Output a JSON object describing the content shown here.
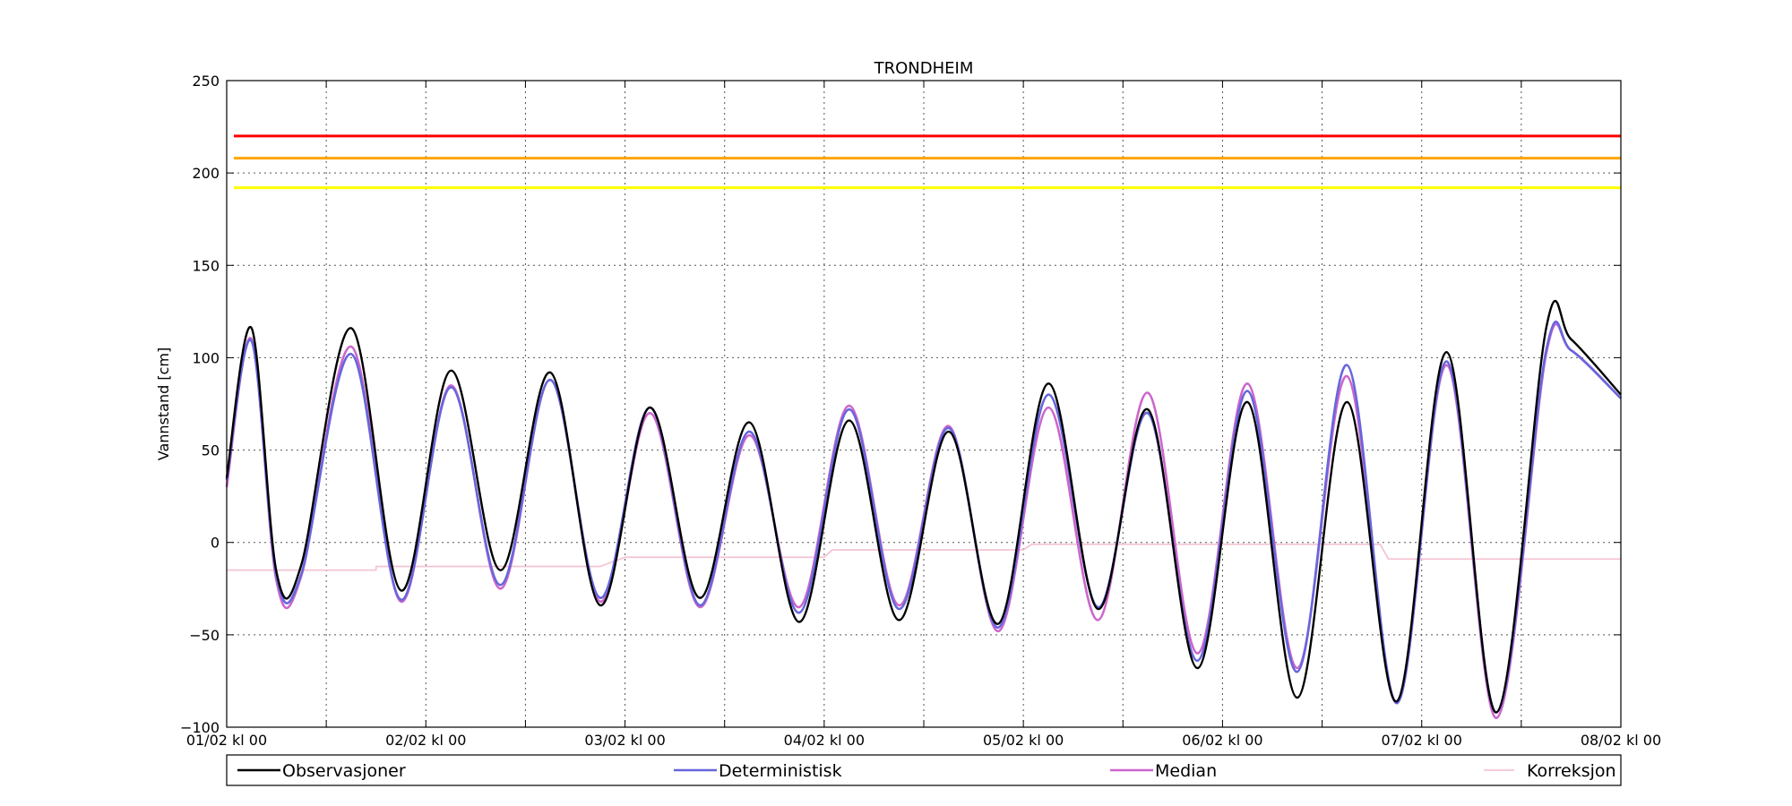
{
  "chart_data": {
    "type": "line",
    "title": "TRONDHEIM",
    "ylabel": "Vannstand [cm]",
    "xlabel": "",
    "ylim": [
      -100,
      250
    ],
    "xlim_hours": [
      0,
      168
    ],
    "yticks": [
      "250",
      "200",
      "150",
      "100",
      "50",
      "0",
      "−50",
      "−100"
    ],
    "ytick_values": [
      250,
      200,
      150,
      100,
      50,
      0,
      -50,
      -100
    ],
    "xticks": [
      "01/02 kl 00",
      "02/02 kl 00",
      "03/02 kl 00",
      "04/02 kl 00",
      "05/02 kl 00",
      "06/02 kl 00",
      "07/02 kl 00",
      "08/02 kl 00"
    ],
    "grid": true,
    "legend_position": "bottom",
    "thresholds": [
      {
        "value": 220,
        "color": "#ff0000"
      },
      {
        "value": 208,
        "color": "#ffa500"
      },
      {
        "value": 192,
        "color": "#ffff00"
      }
    ],
    "series": [
      {
        "name": "Observasjoner",
        "color": "#000000",
        "width": 2.4,
        "points": [
          [
            0,
            35
          ],
          [
            3,
            116
          ],
          [
            6,
            -16
          ],
          [
            9,
            -12
          ],
          [
            15,
            116
          ],
          [
            21,
            -26
          ],
          [
            27,
            93
          ],
          [
            33,
            -15
          ],
          [
            39,
            92
          ],
          [
            45,
            -34
          ],
          [
            51,
            73
          ],
          [
            57,
            -30
          ],
          [
            63,
            65
          ],
          [
            69,
            -43
          ],
          [
            75,
            66
          ],
          [
            81,
            -42
          ],
          [
            87,
            60
          ],
          [
            93,
            -44
          ],
          [
            99,
            86
          ],
          [
            105,
            -36
          ],
          [
            111,
            72
          ],
          [
            117,
            -68
          ],
          [
            123,
            76
          ],
          [
            129,
            -84
          ],
          [
            135,
            76
          ],
          [
            141,
            -86
          ],
          [
            147,
            103
          ],
          [
            153,
            -92
          ],
          [
            159,
            116
          ],
          [
            162,
            110
          ],
          [
            168,
            80
          ]
        ]
      },
      {
        "name": "Deterministisk",
        "color": "#6666dd",
        "width": 2.6,
        "points": [
          [
            0,
            34
          ],
          [
            3,
            109
          ],
          [
            6,
            -18
          ],
          [
            9,
            -17
          ],
          [
            15,
            102
          ],
          [
            21,
            -31
          ],
          [
            27,
            84
          ],
          [
            33,
            -23
          ],
          [
            39,
            88
          ],
          [
            45,
            -30
          ],
          [
            51,
            73
          ],
          [
            57,
            -34
          ],
          [
            63,
            60
          ],
          [
            69,
            -38
          ],
          [
            75,
            72
          ],
          [
            81,
            -36
          ],
          [
            87,
            62
          ],
          [
            93,
            -46
          ],
          [
            99,
            80
          ],
          [
            105,
            -35
          ],
          [
            111,
            70
          ],
          [
            117,
            -64
          ],
          [
            123,
            82
          ],
          [
            129,
            -70
          ],
          [
            135,
            96
          ],
          [
            141,
            -87
          ],
          [
            147,
            98
          ],
          [
            153,
            -92
          ],
          [
            159,
            104
          ],
          [
            162,
            104
          ],
          [
            168,
            78
          ]
        ]
      },
      {
        "name": "Median",
        "color": "#cc66cc",
        "width": 2.6,
        "points": [
          [
            0,
            30
          ],
          [
            3,
            110
          ],
          [
            6,
            -21
          ],
          [
            9,
            -18
          ],
          [
            15,
            106
          ],
          [
            21,
            -32
          ],
          [
            27,
            85
          ],
          [
            33,
            -25
          ],
          [
            39,
            88
          ],
          [
            45,
            -32
          ],
          [
            51,
            70
          ],
          [
            57,
            -35
          ],
          [
            63,
            58
          ],
          [
            69,
            -35
          ],
          [
            75,
            74
          ],
          [
            81,
            -34
          ],
          [
            87,
            63
          ],
          [
            93,
            -48
          ],
          [
            99,
            73
          ],
          [
            105,
            -42
          ],
          [
            111,
            81
          ],
          [
            117,
            -60
          ],
          [
            123,
            86
          ],
          [
            129,
            -68
          ],
          [
            135,
            90
          ],
          [
            141,
            -87
          ],
          [
            147,
            96
          ],
          [
            153,
            -95
          ],
          [
            159,
            102
          ],
          [
            162,
            104
          ],
          [
            168,
            78
          ]
        ]
      },
      {
        "name": "Korreksjon",
        "color": "#f4c4d4",
        "width": 1.8,
        "points": [
          [
            0,
            -15
          ],
          [
            18,
            -15
          ],
          [
            18,
            -13
          ],
          [
            45,
            -13
          ],
          [
            48,
            -8
          ],
          [
            72,
            -8
          ],
          [
            73,
            -4
          ],
          [
            96,
            -4
          ],
          [
            97,
            -1
          ],
          [
            139,
            -1
          ],
          [
            140,
            -9
          ],
          [
            168,
            -9
          ]
        ]
      }
    ]
  }
}
